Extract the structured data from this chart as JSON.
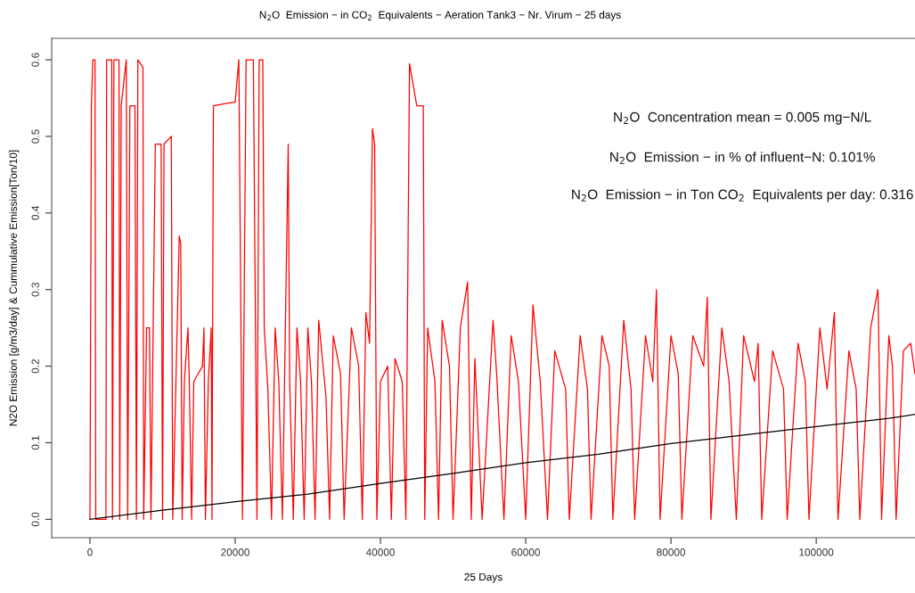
{
  "chart_data": {
    "type": "line",
    "title": "N$_{2}$O  Emission − in CO$_{2}$  Equivalents − Aeration Tank3 − Nr. Virum − 25 days",
    "xlabel": "25 Days",
    "ylabel": "N2O Emission [g/m3/day] & Cummulative Emission[Ton/10]",
    "annotations": [
      "N$_{2}$O  Concentration mean = 0.005 mg−N/L",
      "N$_{2}$O  Emission − in % of influent−N: 0.101%",
      "N$_{2}$O  Emission − in Ton CO$_{2}$  Equivalents per day: 0.316"
    ],
    "xlim": [
      -5270,
      113600
    ],
    "ylim": [
      -0.024,
      0.628
    ],
    "xticks": [
      0,
      20000,
      40000,
      60000,
      80000,
      100000
    ],
    "yticks": [
      {
        "value": 0,
        "label": "0.0"
      },
      0.1,
      0.2,
      0.3,
      0.4,
      0.5,
      0.6
    ],
    "grid": false,
    "series": [
      {
        "color": "#ff0000",
        "x": [
          0,
          200,
          400,
          700,
          800,
          2200,
          2300,
          3000,
          3100,
          3300,
          4000,
          4100,
          4300,
          5000,
          5200,
          5500,
          6200,
          6400,
          6600,
          7300,
          7400,
          7800,
          8200,
          8400,
          9000,
          9800,
          10000,
          10200,
          11200,
          11400,
          12300,
          12500,
          12700,
          13000,
          13500,
          13700,
          14000,
          14300,
          15500,
          15700,
          15900,
          16300,
          16700,
          16800,
          17000,
          20000,
          20500,
          21000,
          21500,
          22500,
          23000,
          23300,
          23800,
          24000,
          24500,
          25000,
          25500,
          26000,
          26500,
          27300,
          27500,
          28000,
          28500,
          29000,
          29500,
          30000,
          30500,
          31000,
          31500,
          32500,
          33000,
          33500,
          34500,
          35000,
          36000,
          37000,
          37500,
          38000,
          38500,
          38900,
          39200,
          39500,
          40000,
          41000,
          41500,
          42000,
          43000,
          43500,
          44000,
          45000,
          45900,
          46100,
          46500,
          47500,
          48000,
          48500,
          49500,
          50000,
          51000,
          52000,
          52500,
          53000,
          54000,
          55500,
          56000,
          57000,
          58000,
          59000,
          60000,
          61000,
          62000,
          63000,
          64000,
          65500,
          66000,
          67500,
          68500,
          69000,
          70500,
          71500,
          72000,
          73500,
          74500,
          75000,
          76500,
          77500,
          78000,
          78500,
          80000,
          81000,
          81500,
          83000,
          84500,
          85000,
          85500,
          87000,
          88000,
          89000,
          90000,
          91500,
          92000,
          92500,
          94000,
          95500,
          96000,
          97500,
          98500,
          99000,
          100500,
          101500,
          102500,
          103000,
          104500,
          105500,
          106000,
          107500,
          108500,
          109000,
          110000,
          110500,
          111000,
          112000,
          113000,
          113600
        ],
        "values": [
          0,
          0.54,
          0.6,
          0.6,
          0,
          0,
          0.6,
          0.6,
          0,
          0.6,
          0.6,
          0,
          0.54,
          0.6,
          0,
          0.54,
          0.54,
          0,
          0.6,
          0.59,
          0,
          0.25,
          0.25,
          0,
          0.49,
          0.49,
          0,
          0.49,
          0.5,
          0,
          0.37,
          0.36,
          0,
          0.18,
          0.25,
          0.17,
          0,
          0.18,
          0.2,
          0.25,
          0,
          0.18,
          0.25,
          0,
          0.54,
          0.545,
          0.6,
          0,
          0.6,
          0.6,
          0,
          0.6,
          0.6,
          0.25,
          0.17,
          0,
          0.25,
          0.18,
          0,
          0.49,
          0.18,
          0,
          0.25,
          0.18,
          0,
          0.25,
          0.18,
          0,
          0.26,
          0.16,
          0,
          0.24,
          0.19,
          0,
          0.25,
          0.2,
          0,
          0.27,
          0.23,
          0.51,
          0.49,
          0,
          0.18,
          0.2,
          0,
          0.21,
          0.18,
          0,
          0.595,
          0.54,
          0.54,
          0,
          0.25,
          0.18,
          0,
          0.26,
          0.2,
          0,
          0.25,
          0.31,
          0,
          0.21,
          0,
          0.26,
          0.19,
          0,
          0.24,
          0.18,
          0,
          0.28,
          0.18,
          0,
          0.22,
          0.17,
          0,
          0.24,
          0.17,
          0,
          0.24,
          0.2,
          0,
          0.26,
          0.17,
          0,
          0.24,
          0.18,
          0.3,
          0,
          0.24,
          0.19,
          0,
          0.24,
          0.2,
          0.29,
          0,
          0.25,
          0.18,
          0,
          0.24,
          0.18,
          0.23,
          0,
          0.22,
          0.17,
          0,
          0.23,
          0.18,
          0,
          0.25,
          0.17,
          0.27,
          0,
          0.22,
          0.17,
          0,
          0.25,
          0.3,
          0,
          0.24,
          0.2,
          0,
          0.22,
          0.23,
          0.19
        ]
      },
      {
        "color": "#000000",
        "x": [
          0,
          10000,
          20000,
          30000,
          40000,
          50000,
          60000,
          70000,
          80000,
          90000,
          100000,
          110000,
          113600
        ],
        "values": [
          0,
          0.012,
          0.023,
          0.033,
          0.047,
          0.06,
          0.074,
          0.085,
          0.099,
          0.11,
          0.121,
          0.132,
          0.137
        ]
      }
    ]
  }
}
